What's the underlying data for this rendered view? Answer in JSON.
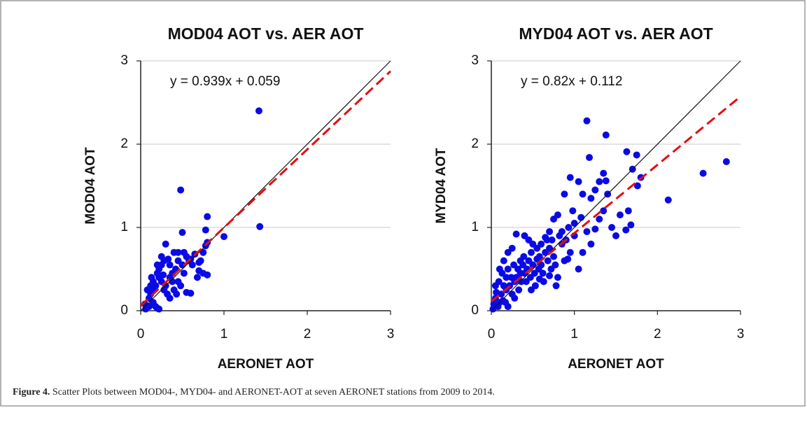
{
  "chart_data": [
    {
      "type": "scatter",
      "title": "MOD04 AOT vs. AER AOT",
      "equation": "y = 0.939x  + 0.059",
      "x_label": "AERONET AOT",
      "y_label": "MOD04 AOT",
      "color": "#0a0ae6",
      "xlim": [
        0,
        3
      ],
      "ylim": [
        0,
        3
      ],
      "xticks": [
        0,
        1,
        2,
        3
      ],
      "yticks": [
        0,
        1,
        2,
        3
      ],
      "grid": true,
      "fit": {
        "slope": 0.939,
        "intercept": 0.059,
        "color": "#e01010"
      },
      "x": [
        1.42,
        1.43,
        0.48,
        1.0,
        0.8,
        0.78,
        0.8,
        0.78,
        0.75,
        0.72,
        0.7,
        0.75,
        0.8,
        0.68,
        0.5,
        0.52,
        0.45,
        0.4,
        0.55,
        0.6,
        0.62,
        0.5,
        0.45,
        0.42,
        0.38,
        0.35,
        0.3,
        0.28,
        0.25,
        0.22,
        0.2,
        0.22,
        0.25,
        0.3,
        0.32,
        0.35,
        0.28,
        0.18,
        0.15,
        0.12,
        0.1,
        0.08,
        0.12,
        0.15,
        0.18,
        0.2,
        0.22,
        0.1,
        0.05,
        0.06,
        0.45,
        0.48,
        0.4,
        0.55,
        0.6,
        0.35,
        0.33,
        0.25,
        0.2,
        0.43,
        0.38,
        0.27,
        0.52,
        0.65,
        0.7,
        0.58,
        0.15,
        0.13
      ],
      "y": [
        2.4,
        1.01,
        1.45,
        0.89,
        1.13,
        0.97,
        0.82,
        0.78,
        0.7,
        0.6,
        0.48,
        0.45,
        0.43,
        0.4,
        0.94,
        0.7,
        0.7,
        0.7,
        0.65,
        0.62,
        0.55,
        0.55,
        0.6,
        0.5,
        0.45,
        0.4,
        0.8,
        0.6,
        0.55,
        0.5,
        0.45,
        0.4,
        0.35,
        0.3,
        0.2,
        0.15,
        0.25,
        0.3,
        0.25,
        0.2,
        0.15,
        0.25,
        0.3,
        0.1,
        0.05,
        0.03,
        0.02,
        0.05,
        0.08,
        0.02,
        0.35,
        0.3,
        0.25,
        0.22,
        0.21,
        0.55,
        0.62,
        0.65,
        0.55,
        0.2,
        0.35,
        0.43,
        0.45,
        0.68,
        0.58,
        0.6,
        0.35,
        0.4
      ]
    },
    {
      "type": "scatter",
      "title": "MYD04 AOT vs. AER AOT",
      "equation": "y = 0.82x  + 0.112",
      "x_label": "AERONET AOT",
      "y_label": "MYD04 AOT",
      "color": "#0a0ae6",
      "xlim": [
        0,
        3
      ],
      "ylim": [
        0,
        3
      ],
      "xticks": [
        0,
        1,
        2,
        3
      ],
      "yticks": [
        0,
        1,
        2,
        3
      ],
      "grid": true,
      "fit": {
        "slope": 0.82,
        "intercept": 0.112,
        "color": "#e01010"
      },
      "x": [
        1.15,
        1.38,
        1.63,
        1.75,
        1.7,
        1.8,
        1.76,
        2.55,
        2.83,
        2.13,
        1.18,
        1.35,
        1.38,
        1.3,
        1.25,
        1.05,
        0.95,
        0.88,
        0.98,
        1.1,
        1.2,
        1.35,
        1.3,
        1.45,
        1.65,
        1.68,
        1.62,
        1.5,
        1.25,
        1.2,
        1.1,
        1.05,
        0.85,
        0.92,
        0.8,
        0.75,
        0.7,
        0.65,
        0.6,
        0.55,
        0.5,
        0.45,
        0.4,
        0.3,
        0.25,
        0.2,
        0.15,
        0.1,
        0.05,
        0.05,
        0.08,
        0.1,
        0.12,
        0.15,
        0.18,
        0.2,
        0.22,
        0.25,
        0.28,
        0.3,
        0.32,
        0.35,
        0.38,
        0.4,
        0.42,
        0.45,
        0.48,
        0.5,
        0.52,
        0.55,
        0.58,
        0.6,
        0.62,
        0.65,
        0.68,
        0.7,
        0.72,
        0.75,
        0.78,
        0.8,
        0.82,
        0.85,
        0.9,
        0.95,
        1.0,
        1.0,
        0.02,
        0.03,
        0.06,
        0.09,
        0.13,
        0.17,
        0.2,
        0.24,
        0.27,
        0.33,
        0.36,
        0.39,
        0.43,
        0.47,
        0.53,
        0.57,
        0.63,
        0.67,
        0.73,
        0.77,
        0.88,
        0.93,
        1.08,
        1.15,
        1.4,
        1.55,
        0.35,
        0.28,
        0.18,
        0.14,
        0.48,
        0.58,
        0.7
      ],
      "y": [
        2.28,
        2.11,
        1.91,
        1.87,
        1.7,
        1.6,
        1.5,
        1.65,
        1.79,
        1.33,
        1.84,
        1.65,
        1.56,
        1.55,
        1.45,
        1.55,
        1.6,
        1.4,
        1.2,
        1.4,
        1.35,
        1.2,
        1.1,
        1.0,
        1.2,
        1.03,
        0.97,
        0.9,
        0.98,
        0.8,
        0.7,
        0.5,
        0.8,
        0.62,
        1.15,
        1.1,
        0.95,
        0.88,
        0.8,
        0.75,
        0.8,
        0.85,
        0.9,
        0.92,
        0.75,
        0.7,
        0.6,
        0.5,
        0.3,
        0.15,
        0.05,
        0.1,
        0.2,
        0.3,
        0.4,
        0.5,
        0.3,
        0.2,
        0.15,
        0.4,
        0.5,
        0.6,
        0.55,
        0.45,
        0.35,
        0.6,
        0.7,
        0.55,
        0.45,
        0.62,
        0.65,
        0.55,
        0.45,
        0.7,
        0.6,
        0.75,
        0.5,
        0.65,
        0.3,
        0.4,
        0.9,
        0.95,
        0.85,
        0.7,
        0.9,
        1.05,
        0.02,
        0.08,
        0.22,
        0.35,
        0.45,
        0.1,
        0.05,
        0.4,
        0.55,
        0.25,
        0.35,
        0.65,
        0.5,
        0.4,
        0.3,
        0.5,
        0.35,
        0.85,
        0.85,
        0.55,
        0.6,
        1.0,
        1.12,
        0.95,
        1.4,
        1.15,
        0.45,
        0.35,
        0.25,
        0.12,
        0.25,
        0.38,
        0.42
      ]
    }
  ],
  "caption": {
    "label": "Figure 4.",
    "text": " Scatter Plots between MOD04-, MYD04- and AERONET-AOT at seven AERONET stations from 2009 to 2014."
  }
}
